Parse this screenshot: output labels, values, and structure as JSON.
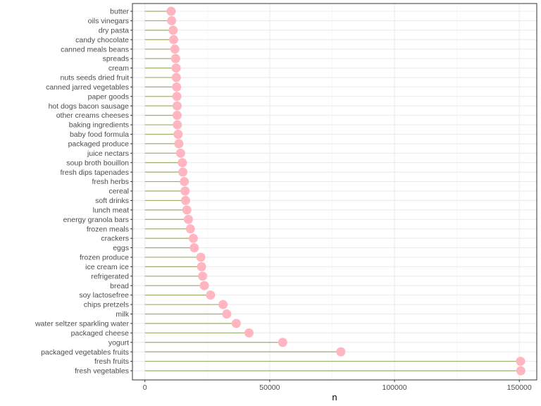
{
  "chart_data": {
    "type": "lollipop",
    "orientation": "horizontal",
    "xlabel": "n",
    "ylabel": "",
    "title": "",
    "xlim": [
      -5000,
      157000
    ],
    "xticks": [
      0,
      50000,
      100000,
      150000
    ],
    "xtick_labels": [
      "0",
      "50000",
      "100000",
      "150000"
    ],
    "grid": true,
    "theme": "bw",
    "stem_color": "#9caf6b",
    "point_color": "#ffb6c1",
    "categories": [
      "fresh vegetables",
      "fresh fruits",
      "packaged vegetables fruits",
      "yogurt",
      "packaged cheese",
      "water seltzer sparkling water",
      "milk",
      "chips pretzels",
      "soy lactosefree",
      "bread",
      "refrigerated",
      "ice cream ice",
      "frozen produce",
      "eggs",
      "crackers",
      "frozen meals",
      "energy granola bars",
      "lunch meat",
      "soft drinks",
      "cereal",
      "fresh herbs",
      "fresh dips tapenades",
      "soup broth bouillon",
      "juice nectars",
      "packaged produce",
      "baby food formula",
      "baking ingredients",
      "other creams cheeses",
      "hot dogs bacon sausage",
      "paper goods",
      "canned jarred vegetables",
      "nuts seeds dried fruit",
      "cream",
      "spreads",
      "canned meals beans",
      "candy chocolate",
      "dry pasta",
      "oils vinegars",
      "butter"
    ],
    "values": [
      150600,
      150500,
      78500,
      55200,
      41700,
      36600,
      32800,
      31300,
      26300,
      23800,
      23100,
      22700,
      22400,
      19800,
      19400,
      18200,
      17400,
      16800,
      16300,
      16100,
      15800,
      15200,
      15000,
      14300,
      13600,
      13300,
      13000,
      12900,
      12900,
      12800,
      12700,
      12600,
      12500,
      12300,
      12000,
      11500,
      11300,
      10700,
      10500
    ]
  }
}
